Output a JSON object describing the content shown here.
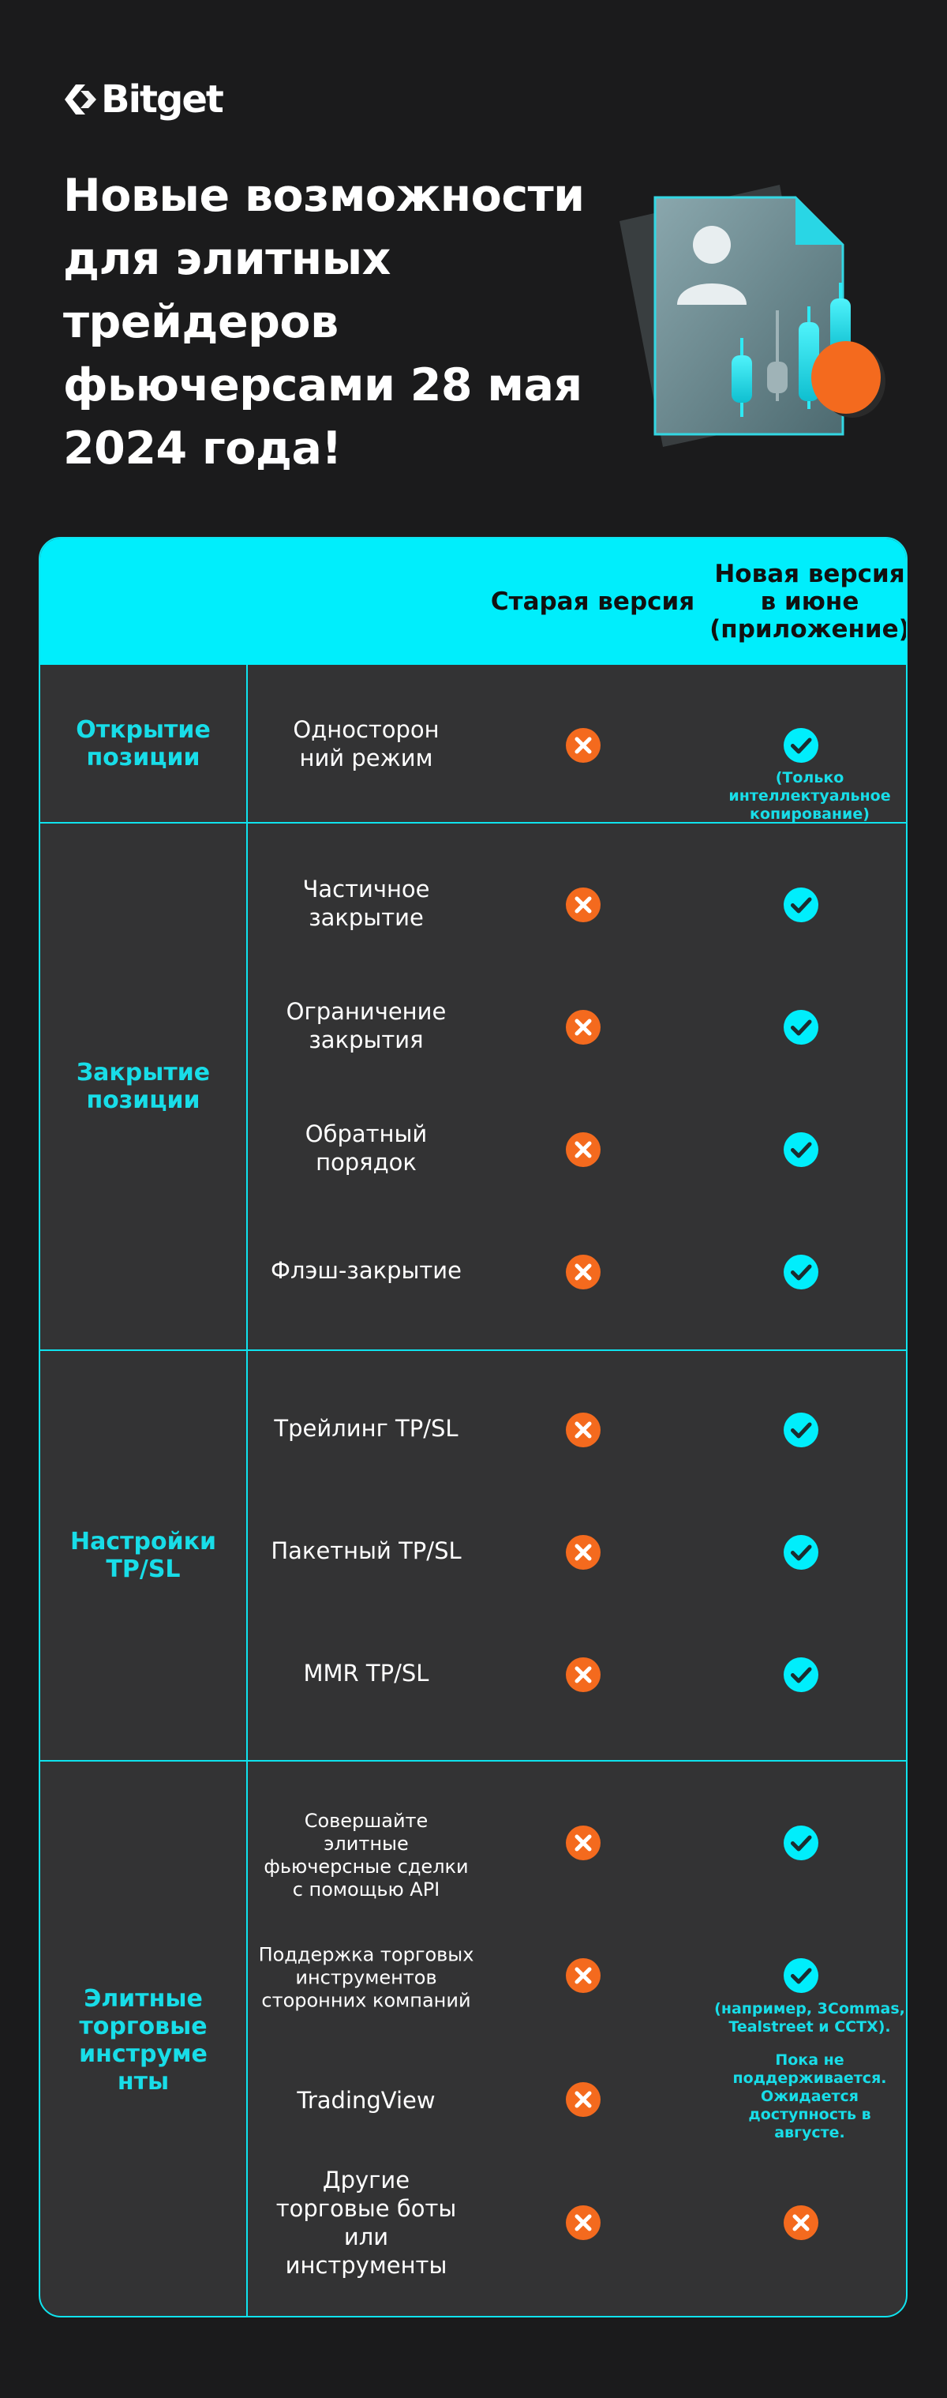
{
  "brand": {
    "name": "Bitget",
    "accent": "#00eefc",
    "orange": "#f46a1e"
  },
  "headline": [
    "Новые возможности",
    "для элитных",
    "трейдеров",
    "фьючерсами 28 мая",
    "2024 года!"
  ],
  "table": {
    "col_old": "Старая версия",
    "col_new": [
      "Новая версия",
      "в июне",
      "(приложение)"
    ],
    "categories": {
      "open": [
        "Открытие",
        "позиции"
      ],
      "close": [
        "Закрытие",
        "позиции"
      ],
      "tpsl": [
        "Настройки",
        "TP/SL"
      ],
      "tools": [
        "Элитные",
        "торговые",
        "инструме",
        "нты"
      ]
    },
    "features": {
      "one_way": [
        "Односторон",
        "ний режим"
      ],
      "partial_close": [
        "Частичное",
        "закрытие"
      ],
      "limit_close": [
        "Ограничение",
        "закрытия"
      ],
      "reverse_order": [
        "Обратный",
        "порядок"
      ],
      "flash_close": "Флэш-закрытие",
      "trailing": "Трейлинг TP/SL",
      "batch": "Пакетный TP/SL",
      "mmr": "MMR TP/SL",
      "api": [
        "Совершайте",
        "элитные",
        "фьючерсные сделки",
        "с помощью API"
      ],
      "third_party": [
        "Поддержка торговых",
        "инструментов",
        "сторонних компаний"
      ],
      "tradingview": "TradingView",
      "other_bots": [
        "Другие",
        "торговые боты",
        "или",
        "инструменты"
      ]
    },
    "notes": {
      "one_way": [
        "(Только",
        "интеллектуальное",
        "копирование)"
      ],
      "third_party": [
        "(например, 3Commas,",
        "Tealstreet и CCTX)."
      ],
      "tradingview": [
        "Пока не",
        "поддерживается.",
        "Ожидается",
        "доступность в",
        "августе."
      ]
    },
    "status": {
      "one_way": [
        "no",
        "yes"
      ],
      "partial_close": [
        "no",
        "yes"
      ],
      "limit_close": [
        "no",
        "yes"
      ],
      "reverse_order": [
        "no",
        "yes"
      ],
      "flash_close": [
        "no",
        "yes"
      ],
      "trailing": [
        "no",
        "yes"
      ],
      "batch": [
        "no",
        "yes"
      ],
      "mmr": [
        "no",
        "yes"
      ],
      "api": [
        "no",
        "yes"
      ],
      "third_party": [
        "no",
        "yes"
      ],
      "tradingview": [
        "no",
        ""
      ],
      "other_bots": [
        "no",
        "no"
      ]
    },
    "icons": {
      "yes": "check-circle-icon",
      "no": "cross-circle-icon"
    }
  }
}
